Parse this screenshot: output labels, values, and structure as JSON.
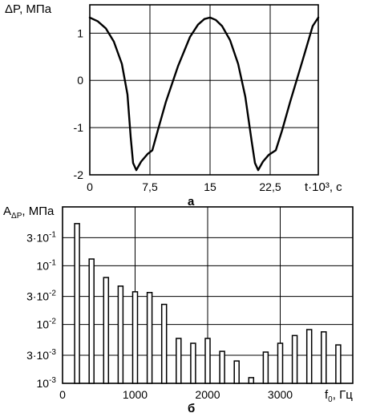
{
  "chart_data": [
    {
      "type": "line",
      "ylabel": "ΔP, МПа",
      "xlabel": "t·10³, с",
      "panel_label": "а",
      "xlim": [
        0,
        28.5
      ],
      "ylim": [
        -2,
        1.6
      ],
      "x_ticks": [
        0,
        7.5,
        15,
        22.5
      ],
      "x_tick_labels": [
        "0",
        "7,5",
        "15",
        "22,5"
      ],
      "y_ticks": [
        1,
        0,
        -1,
        -2
      ],
      "y_tick_labels": [
        "1",
        "0",
        "-1",
        "-2"
      ],
      "grid": true,
      "series": [
        {
          "x": [
            0,
            1,
            2,
            3,
            4,
            4.7,
            5.1,
            5.4,
            5.8,
            6.4,
            7.2,
            7.8,
            8.5,
            9.5,
            11,
            12.5,
            13.5,
            14.3,
            15,
            15.7,
            16.5,
            17.5,
            18.5,
            19.4,
            20.2,
            20.6,
            21,
            21.6,
            22.3,
            23.2,
            24,
            25,
            26.5,
            27.8,
            28.5
          ],
          "y": [
            1.33,
            1.25,
            1.1,
            0.82,
            0.35,
            -0.3,
            -1.2,
            -1.75,
            -1.9,
            -1.72,
            -1.56,
            -1.48,
            -1.05,
            -0.45,
            0.3,
            0.92,
            1.18,
            1.3,
            1.33,
            1.28,
            1.15,
            0.85,
            0.35,
            -0.35,
            -1.3,
            -1.75,
            -1.9,
            -1.72,
            -1.58,
            -1.48,
            -1.05,
            -0.45,
            0.4,
            1.15,
            1.33
          ]
        }
      ]
    },
    {
      "type": "bar",
      "ylabel": "A",
      "ylabel_sub": "ΔP",
      "ylabel_unit": ", МПа",
      "xlabel": "f",
      "xlabel_sub": "0",
      "xlabel_unit": ", Гц",
      "panel_label": "б",
      "xlim": [
        0,
        4000
      ],
      "ylim_log": [
        0.001,
        1
      ],
      "y_scale": "log",
      "x_ticks": [
        0,
        1000,
        2000,
        3000
      ],
      "x_tick_labels": [
        "0",
        "1000",
        "2000",
        "3000"
      ],
      "y_ticks": [
        0.3,
        0.1,
        0.03,
        0.01,
        0.003,
        0.001
      ],
      "y_tick_mantissa": [
        "3·10",
        "10",
        "3·10",
        "10",
        "3·10",
        "10"
      ],
      "y_tick_exponent": [
        "-1",
        "-1",
        "-2",
        "-2",
        "-3",
        "-3"
      ],
      "grid": true,
      "x": [
        200,
        400,
        600,
        800,
        1000,
        1200,
        1400,
        1600,
        1800,
        2000,
        2200,
        2400,
        2600,
        2800,
        3000,
        3200,
        3400,
        3600,
        3800
      ],
      "values": [
        0.52,
        0.13,
        0.063,
        0.045,
        0.036,
        0.035,
        0.022,
        0.0058,
        0.0048,
        0.0058,
        0.0035,
        0.0024,
        0.00125,
        0.0034,
        0.0048,
        0.0065,
        0.0082,
        0.0075,
        0.0045
      ]
    }
  ]
}
